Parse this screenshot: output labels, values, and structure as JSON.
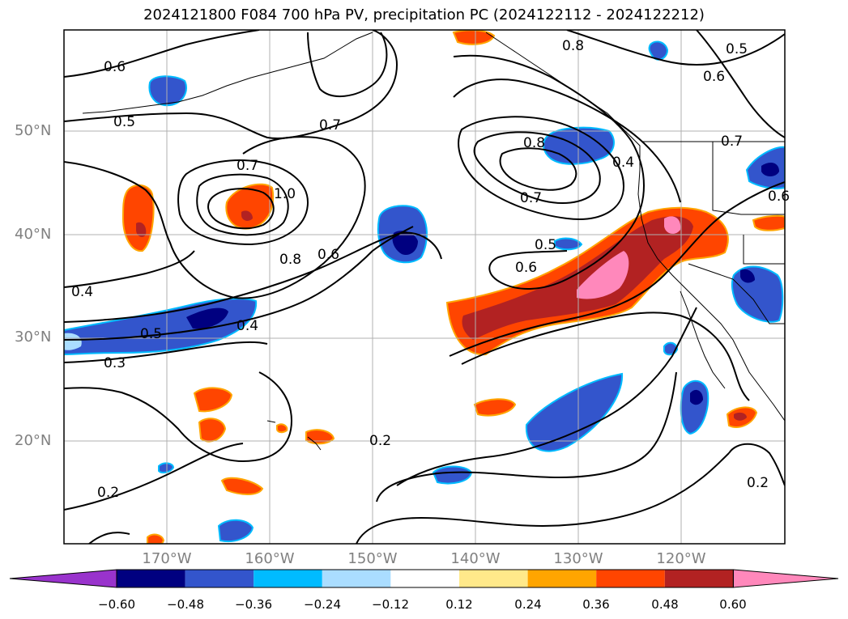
{
  "title": "2024121800 F084 700 hPa PV, precipitation PC (2024122112 - 2024122212)",
  "lat_labels": [
    "50°N",
    "40°N",
    "30°N",
    "20°N"
  ],
  "lon_labels": [
    "170°W",
    "160°W",
    "150°W",
    "140°W",
    "130°W",
    "120°W"
  ],
  "contour_labels": [
    "0.6",
    "0.5",
    "0.7",
    "0.7",
    "1.0",
    "0.8",
    "0.6",
    "0.4",
    "0.5",
    "0.4",
    "0.3",
    "0.8",
    "0.8",
    "0.4",
    "0.7",
    "0.5",
    "0.6",
    "0.5",
    "0.6",
    "0.7",
    "0.6",
    "0.2",
    "0.2",
    "0.2"
  ],
  "colorbar": {
    "ticks": [
      "−0.60",
      "−0.48",
      "−0.36",
      "−0.24",
      "−0.12",
      "0.12",
      "0.24",
      "0.36",
      "0.48",
      "0.60"
    ],
    "colors": [
      "#9933cc",
      "#000080",
      "#3355cc",
      "#00bbff",
      "#aaddff",
      "#ffffff",
      "#ffe98a",
      "#ffa500",
      "#ff4500",
      "#b22222",
      "#ff88bb"
    ]
  }
}
